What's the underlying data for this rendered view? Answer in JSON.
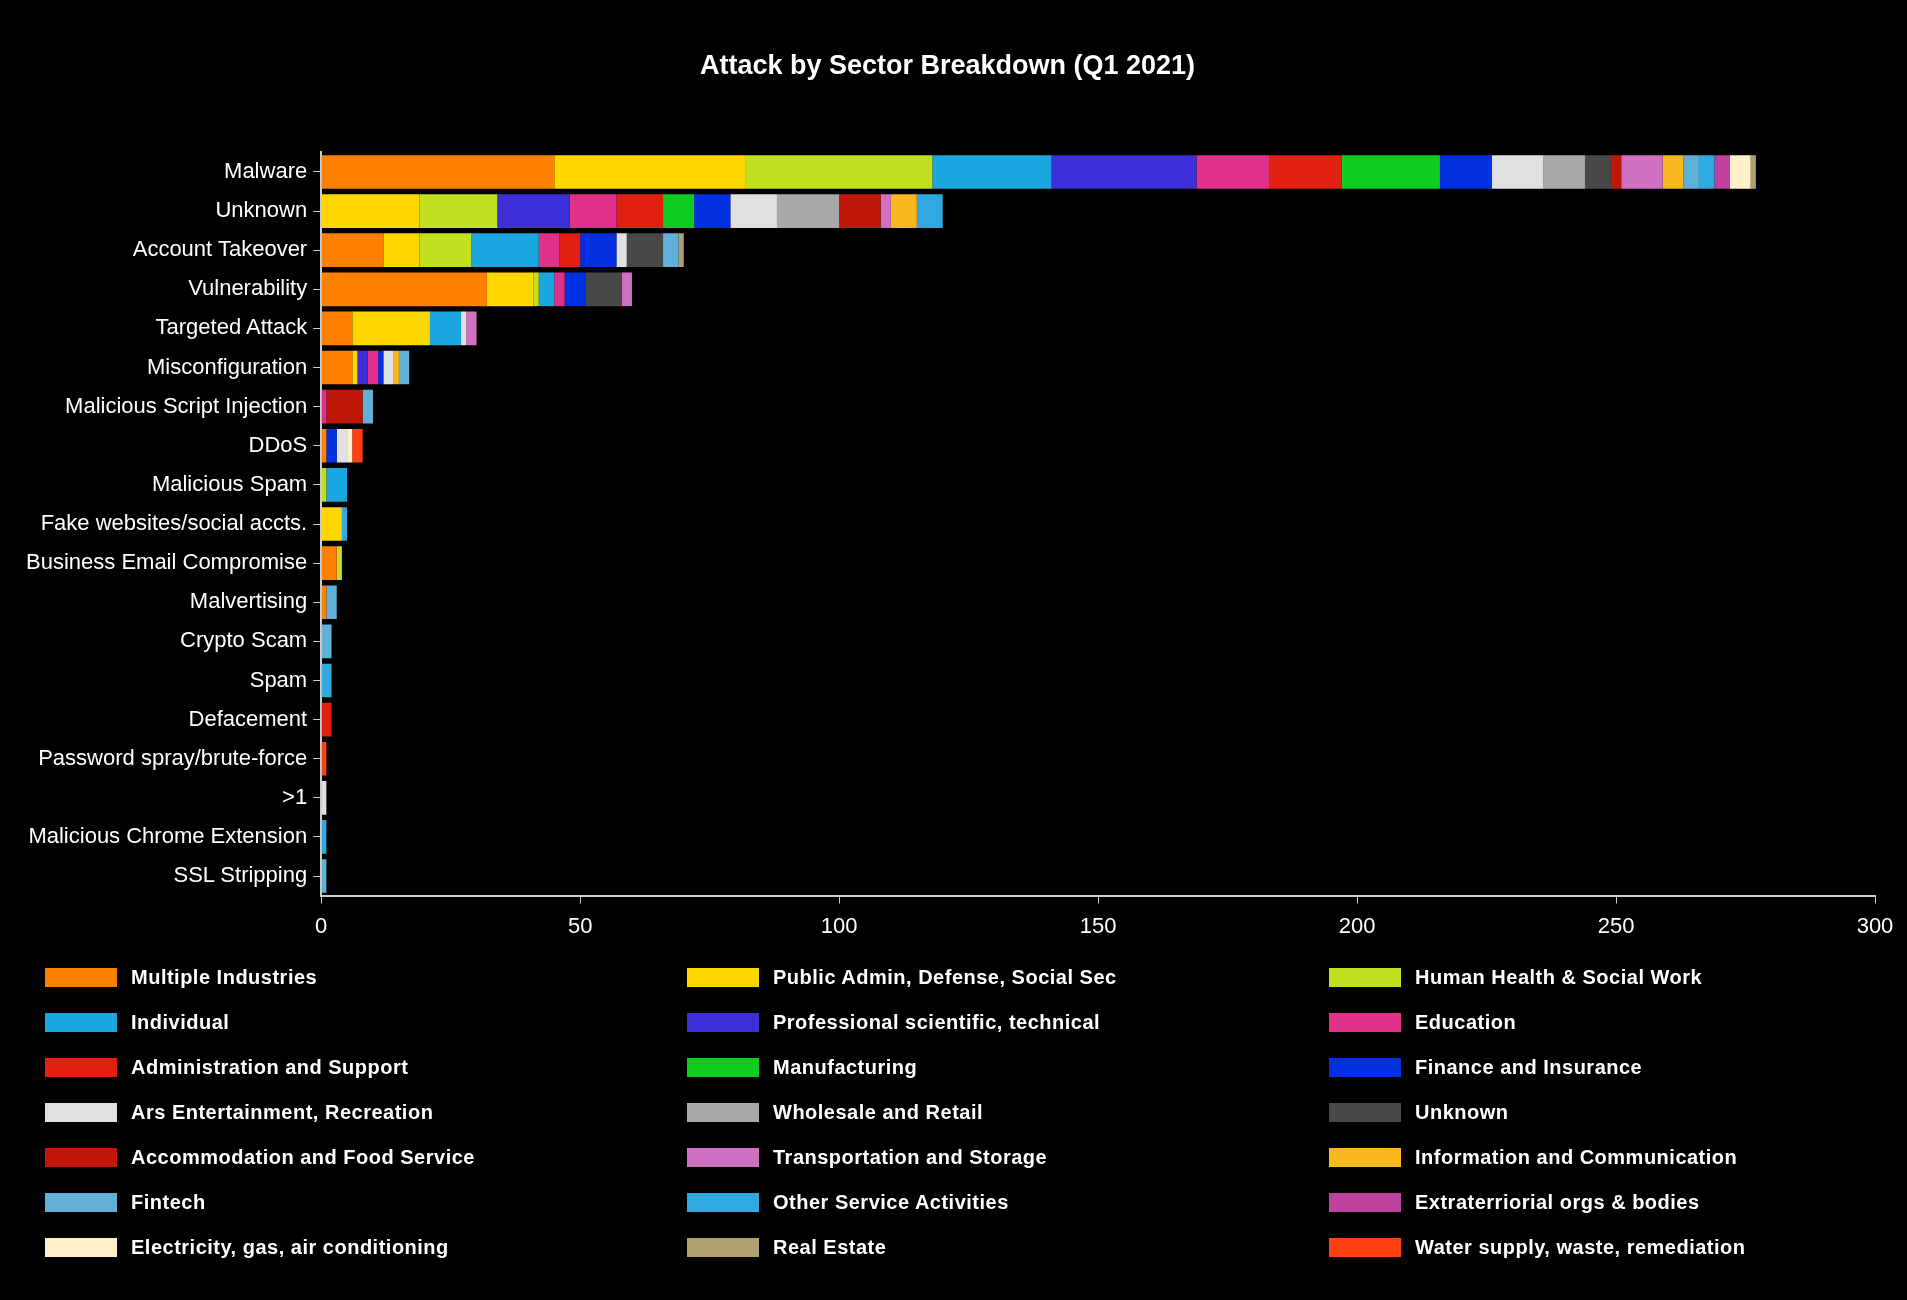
{
  "chart_data": {
    "type": "bar",
    "orientation": "horizontal",
    "stacked": true,
    "title": "Attack by Sector Breakdown (Q1 2021)",
    "categories": [
      "Malware",
      "Unknown",
      "Account Takeover",
      "Vulnerability",
      "Targeted Attack",
      "Misconfiguration",
      "Malicious Script Injection",
      "DDoS",
      "Malicious Spam",
      "Fake websites/social accts.",
      "Business Email Compromise",
      "Malvertising",
      "Crypto Scam",
      "Spam",
      "Defacement",
      "Password spray/brute-force",
      ">1",
      "Malicious Chrome Extension",
      "SSL Stripping"
    ],
    "xlim": [
      0,
      300
    ],
    "xticks": [
      0,
      50,
      100,
      150,
      200,
      250,
      300
    ],
    "grid": false,
    "legend": "bottom",
    "series": [
      {
        "name": "Multiple Industries",
        "color": "#ff8000",
        "values": [
          45,
          null,
          12,
          32,
          6,
          6,
          null,
          1,
          null,
          null,
          3,
          1,
          null,
          null,
          null,
          null,
          null,
          null,
          null
        ]
      },
      {
        "name": "Public Admin, Defense, Social Sec",
        "color": "#ffd700",
        "values": [
          37,
          19,
          7,
          9,
          15,
          1,
          null,
          null,
          null,
          4,
          null,
          null,
          null,
          null,
          null,
          null,
          null,
          null,
          null
        ]
      },
      {
        "name": "Human Health & Social Work",
        "color": "#c0e020",
        "values": [
          36,
          15,
          10,
          1,
          null,
          null,
          null,
          null,
          1,
          null,
          1,
          null,
          null,
          null,
          null,
          null,
          null,
          null,
          null
        ]
      },
      {
        "name": "Individual",
        "color": "#1aa7e0",
        "values": [
          23,
          null,
          13,
          3,
          6,
          null,
          null,
          null,
          4,
          null,
          null,
          null,
          null,
          null,
          null,
          null,
          null,
          null,
          null
        ]
      },
      {
        "name": "Professional scientific, technical",
        "color": "#3c2fd8",
        "values": [
          28,
          14,
          null,
          null,
          null,
          2,
          null,
          null,
          null,
          null,
          null,
          null,
          null,
          null,
          null,
          null,
          null,
          null,
          null
        ]
      },
      {
        "name": "Education",
        "color": "#e0308a",
        "values": [
          14,
          9,
          4,
          2,
          null,
          2,
          1,
          null,
          null,
          null,
          null,
          null,
          null,
          null,
          null,
          null,
          null,
          null,
          null
        ]
      },
      {
        "name": "Administration and Support",
        "color": "#e02010",
        "values": [
          14,
          9,
          4,
          null,
          null,
          null,
          null,
          null,
          null,
          null,
          null,
          null,
          null,
          null,
          2,
          null,
          null,
          null,
          null
        ]
      },
      {
        "name": "Manufacturing",
        "color": "#10cc20",
        "values": [
          19,
          6,
          null,
          null,
          null,
          null,
          null,
          null,
          null,
          null,
          null,
          null,
          null,
          null,
          null,
          null,
          null,
          null,
          null
        ]
      },
      {
        "name": "Finance and Insurance",
        "color": "#0030e0",
        "values": [
          10,
          7,
          7,
          4,
          null,
          1,
          null,
          2,
          null,
          null,
          null,
          null,
          null,
          null,
          null,
          null,
          null,
          null,
          null
        ]
      },
      {
        "name": "Ars Entertainment, Recreation",
        "color": "#e0e0e0",
        "values": [
          10,
          9,
          2,
          null,
          1,
          2,
          null,
          2,
          null,
          null,
          null,
          null,
          null,
          null,
          null,
          null,
          1,
          null,
          null
        ]
      },
      {
        "name": "Wholesale and Retail",
        "color": "#a8a8a8",
        "values": [
          8,
          12,
          null,
          null,
          null,
          null,
          null,
          null,
          null,
          null,
          null,
          null,
          null,
          null,
          null,
          null,
          null,
          null,
          null
        ]
      },
      {
        "name": "Unknown",
        "color": "#484848",
        "values": [
          5,
          null,
          7,
          7,
          null,
          null,
          null,
          null,
          null,
          null,
          null,
          null,
          null,
          null,
          null,
          null,
          null,
          null,
          null
        ]
      },
      {
        "name": "Accommodation and Food Service",
        "color": "#c01808",
        "values": [
          2,
          8,
          null,
          null,
          null,
          null,
          7,
          null,
          null,
          null,
          null,
          null,
          null,
          null,
          null,
          null,
          null,
          null,
          null
        ]
      },
      {
        "name": "Transportation and Storage",
        "color": "#d070c0",
        "values": [
          8,
          2,
          null,
          2,
          2,
          null,
          null,
          null,
          null,
          null,
          null,
          null,
          null,
          null,
          null,
          null,
          null,
          null,
          null
        ]
      },
      {
        "name": "Information and Communication",
        "color": "#f8b820",
        "values": [
          4,
          5,
          null,
          null,
          null,
          1,
          null,
          null,
          null,
          null,
          null,
          null,
          null,
          null,
          null,
          null,
          null,
          null,
          null
        ]
      },
      {
        "name": "Fintech",
        "color": "#60b0d8",
        "values": [
          3,
          null,
          3,
          null,
          null,
          2,
          2,
          null,
          null,
          null,
          null,
          2,
          2,
          null,
          null,
          null,
          null,
          null,
          1
        ]
      },
      {
        "name": "Other Service Activities",
        "color": "#30a8e0",
        "values": [
          3,
          5,
          null,
          null,
          null,
          null,
          null,
          null,
          null,
          1,
          null,
          null,
          null,
          2,
          null,
          null,
          null,
          1,
          null
        ]
      },
      {
        "name": "Extraterriorial orgs & bodies",
        "color": "#c040a0",
        "values": [
          3,
          null,
          null,
          null,
          null,
          null,
          null,
          null,
          null,
          null,
          null,
          null,
          null,
          null,
          null,
          null,
          null,
          null,
          null
        ]
      },
      {
        "name": "Electricity, gas, air conditioning",
        "color": "#fff0c8",
        "values": [
          4,
          null,
          null,
          null,
          null,
          null,
          null,
          1,
          null,
          null,
          null,
          null,
          null,
          null,
          null,
          null,
          null,
          null,
          null
        ]
      },
      {
        "name": "Real Estate",
        "color": "#b0a070",
        "values": [
          1,
          null,
          1,
          null,
          null,
          null,
          null,
          null,
          null,
          null,
          null,
          null,
          null,
          null,
          null,
          null,
          null,
          null,
          null
        ]
      },
      {
        "name": "Water supply, waste, remediation",
        "color": "#ff4010",
        "values": [
          null,
          null,
          null,
          null,
          null,
          null,
          null,
          2,
          null,
          null,
          null,
          null,
          null,
          null,
          null,
          1,
          null,
          null,
          null
        ]
      }
    ]
  }
}
